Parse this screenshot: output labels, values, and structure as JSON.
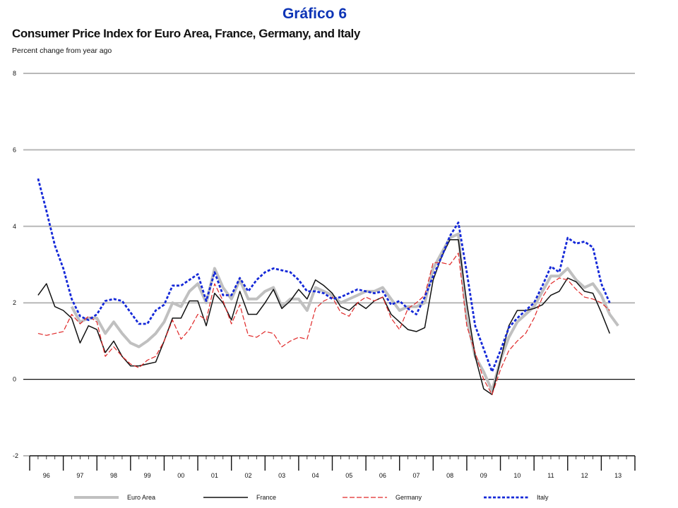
{
  "figure_label": "Gráfico 6",
  "chart_data": {
    "type": "line",
    "title": "Consumer Price Index for Euro Area, France, Germany, and Italy",
    "subtitle": "Percent change from year ago",
    "xlabel": "",
    "ylabel": "",
    "ylim": [
      -2,
      8
    ],
    "yticks": [
      -2,
      0,
      2,
      4,
      6,
      8
    ],
    "xlim": [
      1995.75,
      2013.75
    ],
    "x_tick_labels": [
      "96",
      "97",
      "98",
      "99",
      "00",
      "01",
      "02",
      "03",
      "04",
      "05",
      "06",
      "07",
      "08",
      "09",
      "10",
      "11",
      "12",
      "13"
    ],
    "grid": "horizontal",
    "legend_position": "bottom",
    "series": [
      {
        "name": "Euro Area",
        "color": "#c0c0c0",
        "style": "thick",
        "points": [
          [
            1997.0,
            1.9
          ],
          [
            1997.25,
            1.5
          ],
          [
            1997.5,
            1.6
          ],
          [
            1997.75,
            1.6
          ],
          [
            1998.0,
            1.2
          ],
          [
            1998.25,
            1.5
          ],
          [
            1998.5,
            1.2
          ],
          [
            1998.75,
            0.95
          ],
          [
            1999.0,
            0.85
          ],
          [
            1999.25,
            1.0
          ],
          [
            1999.5,
            1.2
          ],
          [
            1999.75,
            1.5
          ],
          [
            2000.0,
            2.0
          ],
          [
            2000.25,
            1.9
          ],
          [
            2000.5,
            2.3
          ],
          [
            2000.75,
            2.5
          ],
          [
            2001.0,
            2.0
          ],
          [
            2001.25,
            2.9
          ],
          [
            2001.5,
            2.4
          ],
          [
            2001.75,
            2.1
          ],
          [
            2002.0,
            2.6
          ],
          [
            2002.25,
            2.1
          ],
          [
            2002.5,
            2.1
          ],
          [
            2002.75,
            2.3
          ],
          [
            2003.0,
            2.4
          ],
          [
            2003.25,
            1.9
          ],
          [
            2003.5,
            2.1
          ],
          [
            2003.75,
            2.1
          ],
          [
            2004.0,
            1.8
          ],
          [
            2004.25,
            2.4
          ],
          [
            2004.5,
            2.3
          ],
          [
            2004.75,
            2.2
          ],
          [
            2005.0,
            2.0
          ],
          [
            2005.25,
            2.1
          ],
          [
            2005.5,
            2.2
          ],
          [
            2005.75,
            2.3
          ],
          [
            2006.0,
            2.3
          ],
          [
            2006.25,
            2.4
          ],
          [
            2006.5,
            2.1
          ],
          [
            2006.75,
            1.8
          ],
          [
            2007.0,
            1.9
          ],
          [
            2007.25,
            1.9
          ],
          [
            2007.5,
            2.0
          ],
          [
            2007.75,
            2.9
          ],
          [
            2008.0,
            3.3
          ],
          [
            2008.25,
            3.7
          ],
          [
            2008.5,
            3.8
          ],
          [
            2008.75,
            1.6
          ],
          [
            2009.0,
            0.6
          ],
          [
            2009.25,
            0.2
          ],
          [
            2009.5,
            -0.3
          ],
          [
            2009.75,
            0.5
          ],
          [
            2010.0,
            1.1
          ],
          [
            2010.25,
            1.5
          ],
          [
            2010.5,
            1.7
          ],
          [
            2010.75,
            1.9
          ],
          [
            2011.0,
            2.3
          ],
          [
            2011.25,
            2.7
          ],
          [
            2011.5,
            2.7
          ],
          [
            2011.75,
            2.9
          ],
          [
            2012.0,
            2.6
          ],
          [
            2012.25,
            2.4
          ],
          [
            2012.5,
            2.5
          ],
          [
            2012.75,
            2.2
          ],
          [
            2013.0,
            1.7
          ],
          [
            2013.25,
            1.4
          ]
        ]
      },
      {
        "name": "France",
        "color": "#111111",
        "style": "solid",
        "points": [
          [
            1996.0,
            2.2
          ],
          [
            1996.25,
            2.5
          ],
          [
            1996.5,
            1.9
          ],
          [
            1996.75,
            1.8
          ],
          [
            1997.0,
            1.6
          ],
          [
            1997.25,
            0.95
          ],
          [
            1997.5,
            1.4
          ],
          [
            1997.75,
            1.3
          ],
          [
            1998.0,
            0.7
          ],
          [
            1998.25,
            1.0
          ],
          [
            1998.5,
            0.6
          ],
          [
            1998.75,
            0.35
          ],
          [
            1999.0,
            0.35
          ],
          [
            1999.25,
            0.4
          ],
          [
            1999.5,
            0.45
          ],
          [
            1999.75,
            1.0
          ],
          [
            2000.0,
            1.6
          ],
          [
            2000.25,
            1.6
          ],
          [
            2000.5,
            2.05
          ],
          [
            2000.75,
            2.05
          ],
          [
            2001.0,
            1.4
          ],
          [
            2001.25,
            2.25
          ],
          [
            2001.5,
            2.0
          ],
          [
            2001.75,
            1.55
          ],
          [
            2002.0,
            2.3
          ],
          [
            2002.25,
            1.7
          ],
          [
            2002.5,
            1.7
          ],
          [
            2002.75,
            2.0
          ],
          [
            2003.0,
            2.35
          ],
          [
            2003.25,
            1.85
          ],
          [
            2003.5,
            2.05
          ],
          [
            2003.75,
            2.35
          ],
          [
            2004.0,
            2.1
          ],
          [
            2004.25,
            2.6
          ],
          [
            2004.5,
            2.45
          ],
          [
            2004.75,
            2.25
          ],
          [
            2005.0,
            1.9
          ],
          [
            2005.25,
            1.8
          ],
          [
            2005.5,
            2.0
          ],
          [
            2005.75,
            1.85
          ],
          [
            2006.0,
            2.05
          ],
          [
            2006.25,
            2.15
          ],
          [
            2006.5,
            1.7
          ],
          [
            2006.75,
            1.5
          ],
          [
            2007.0,
            1.3
          ],
          [
            2007.25,
            1.25
          ],
          [
            2007.5,
            1.35
          ],
          [
            2007.75,
            2.6
          ],
          [
            2008.0,
            3.2
          ],
          [
            2008.25,
            3.65
          ],
          [
            2008.5,
            3.65
          ],
          [
            2008.75,
            2.0
          ],
          [
            2009.0,
            0.6
          ],
          [
            2009.25,
            -0.25
          ],
          [
            2009.5,
            -0.4
          ],
          [
            2009.75,
            0.5
          ],
          [
            2010.0,
            1.4
          ],
          [
            2010.25,
            1.8
          ],
          [
            2010.5,
            1.8
          ],
          [
            2010.75,
            1.85
          ],
          [
            2011.0,
            1.95
          ],
          [
            2011.25,
            2.2
          ],
          [
            2011.5,
            2.3
          ],
          [
            2011.75,
            2.65
          ],
          [
            2012.0,
            2.55
          ],
          [
            2012.25,
            2.3
          ],
          [
            2012.5,
            2.25
          ],
          [
            2012.75,
            1.75
          ],
          [
            2013.0,
            1.2
          ]
        ]
      },
      {
        "name": "Germany",
        "color": "#e02828",
        "style": "dashed",
        "points": [
          [
            1996.0,
            1.2
          ],
          [
            1996.25,
            1.15
          ],
          [
            1996.5,
            1.2
          ],
          [
            1996.75,
            1.25
          ],
          [
            1997.0,
            1.7
          ],
          [
            1997.25,
            1.45
          ],
          [
            1997.5,
            1.65
          ],
          [
            1997.75,
            1.5
          ],
          [
            1998.0,
            0.6
          ],
          [
            1998.25,
            0.85
          ],
          [
            1998.5,
            0.6
          ],
          [
            1998.75,
            0.4
          ],
          [
            1999.0,
            0.3
          ],
          [
            1999.25,
            0.5
          ],
          [
            1999.5,
            0.6
          ],
          [
            1999.75,
            1.0
          ],
          [
            2000.0,
            1.55
          ],
          [
            2000.25,
            1.05
          ],
          [
            2000.5,
            1.3
          ],
          [
            2000.75,
            1.7
          ],
          [
            2001.0,
            1.55
          ],
          [
            2001.25,
            2.5
          ],
          [
            2001.5,
            2.05
          ],
          [
            2001.75,
            1.45
          ],
          [
            2002.0,
            1.95
          ],
          [
            2002.25,
            1.15
          ],
          [
            2002.5,
            1.1
          ],
          [
            2002.75,
            1.25
          ],
          [
            2003.0,
            1.2
          ],
          [
            2003.25,
            0.85
          ],
          [
            2003.5,
            1.0
          ],
          [
            2003.75,
            1.1
          ],
          [
            2004.0,
            1.05
          ],
          [
            2004.25,
            1.85
          ],
          [
            2004.5,
            2.05
          ],
          [
            2004.75,
            2.15
          ],
          [
            2005.0,
            1.75
          ],
          [
            2005.25,
            1.65
          ],
          [
            2005.5,
            2.0
          ],
          [
            2005.75,
            2.15
          ],
          [
            2006.0,
            2.05
          ],
          [
            2006.25,
            2.15
          ],
          [
            2006.5,
            1.6
          ],
          [
            2006.75,
            1.3
          ],
          [
            2007.0,
            1.85
          ],
          [
            2007.25,
            2.0
          ],
          [
            2007.5,
            2.2
          ],
          [
            2007.75,
            3.05
          ],
          [
            2008.0,
            3.05
          ],
          [
            2008.25,
            3.0
          ],
          [
            2008.5,
            3.3
          ],
          [
            2008.75,
            1.4
          ],
          [
            2009.0,
            0.7
          ],
          [
            2009.25,
            0.0
          ],
          [
            2009.5,
            -0.4
          ],
          [
            2009.75,
            0.25
          ],
          [
            2010.0,
            0.75
          ],
          [
            2010.25,
            1.0
          ],
          [
            2010.5,
            1.2
          ],
          [
            2010.75,
            1.6
          ],
          [
            2011.0,
            2.15
          ],
          [
            2011.25,
            2.5
          ],
          [
            2011.5,
            2.65
          ],
          [
            2011.75,
            2.6
          ],
          [
            2012.0,
            2.35
          ],
          [
            2012.25,
            2.15
          ],
          [
            2012.5,
            2.1
          ],
          [
            2012.75,
            2.0
          ],
          [
            2013.0,
            1.8
          ]
        ]
      },
      {
        "name": "Italy",
        "color": "#1428d8",
        "style": "dotted",
        "points": [
          [
            1996.0,
            5.25
          ],
          [
            1996.25,
            4.4
          ],
          [
            1996.5,
            3.5
          ],
          [
            1996.75,
            2.9
          ],
          [
            1997.0,
            2.1
          ],
          [
            1997.25,
            1.65
          ],
          [
            1997.5,
            1.55
          ],
          [
            1997.75,
            1.7
          ],
          [
            1998.0,
            2.05
          ],
          [
            1998.25,
            2.1
          ],
          [
            1998.5,
            2.05
          ],
          [
            1998.75,
            1.75
          ],
          [
            1999.0,
            1.45
          ],
          [
            1999.25,
            1.45
          ],
          [
            1999.5,
            1.8
          ],
          [
            1999.75,
            1.95
          ],
          [
            2000.0,
            2.45
          ],
          [
            2000.25,
            2.45
          ],
          [
            2000.5,
            2.6
          ],
          [
            2000.75,
            2.75
          ],
          [
            2001.0,
            2.05
          ],
          [
            2001.25,
            2.8
          ],
          [
            2001.5,
            2.2
          ],
          [
            2001.75,
            2.2
          ],
          [
            2002.0,
            2.65
          ],
          [
            2002.25,
            2.3
          ],
          [
            2002.5,
            2.6
          ],
          [
            2002.75,
            2.8
          ],
          [
            2003.0,
            2.9
          ],
          [
            2003.25,
            2.85
          ],
          [
            2003.5,
            2.8
          ],
          [
            2003.75,
            2.6
          ],
          [
            2004.0,
            2.3
          ],
          [
            2004.25,
            2.3
          ],
          [
            2004.5,
            2.25
          ],
          [
            2004.75,
            2.1
          ],
          [
            2005.0,
            2.15
          ],
          [
            2005.25,
            2.25
          ],
          [
            2005.5,
            2.35
          ],
          [
            2005.75,
            2.3
          ],
          [
            2006.0,
            2.25
          ],
          [
            2006.25,
            2.3
          ],
          [
            2006.5,
            1.95
          ],
          [
            2006.75,
            2.05
          ],
          [
            2007.0,
            1.85
          ],
          [
            2007.25,
            1.7
          ],
          [
            2007.5,
            2.15
          ],
          [
            2007.75,
            2.7
          ],
          [
            2008.0,
            3.2
          ],
          [
            2008.25,
            3.75
          ],
          [
            2008.5,
            4.1
          ],
          [
            2008.75,
            2.8
          ],
          [
            2009.0,
            1.4
          ],
          [
            2009.25,
            0.8
          ],
          [
            2009.5,
            0.2
          ],
          [
            2009.75,
            0.75
          ],
          [
            2010.0,
            1.35
          ],
          [
            2010.25,
            1.6
          ],
          [
            2010.5,
            1.8
          ],
          [
            2010.75,
            2.0
          ],
          [
            2011.0,
            2.45
          ],
          [
            2011.25,
            2.95
          ],
          [
            2011.5,
            2.8
          ],
          [
            2011.75,
            3.7
          ],
          [
            2012.0,
            3.55
          ],
          [
            2012.25,
            3.6
          ],
          [
            2012.5,
            3.45
          ],
          [
            2012.75,
            2.5
          ],
          [
            2013.0,
            2.0
          ]
        ]
      }
    ]
  }
}
